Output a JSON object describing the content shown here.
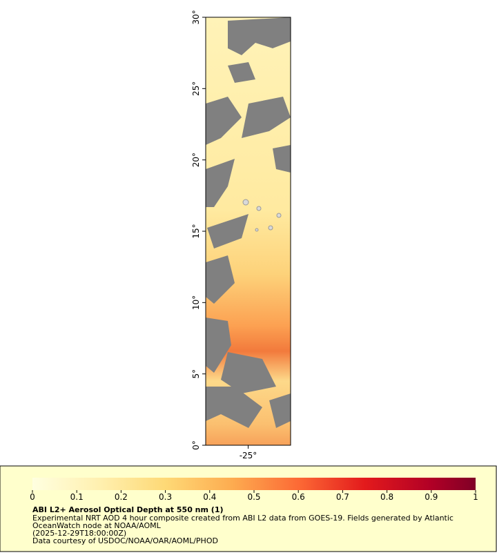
{
  "map": {
    "xlim": [
      -28,
      -22
    ],
    "ylim": [
      0,
      30
    ],
    "xticks": [
      {
        "value": -25,
        "label": "-25°"
      }
    ],
    "yticks": [
      {
        "value": 0,
        "label": "0°"
      },
      {
        "value": 5,
        "label": "5°"
      },
      {
        "value": 10,
        "label": "10°"
      },
      {
        "value": 15,
        "label": "15°"
      },
      {
        "value": 20,
        "label": "20°"
      },
      {
        "value": 25,
        "label": "25°"
      },
      {
        "value": 30,
        "label": "30°"
      }
    ]
  },
  "colorbar": {
    "lim": [
      0,
      1
    ],
    "ticks": [
      0,
      0.1,
      0.2,
      0.3,
      0.4,
      0.5,
      0.6,
      0.7,
      0.8,
      0.9,
      1
    ]
  },
  "legend": {
    "title": "ABI L2+ Aerosol Optical Depth at 550 nm (1)",
    "lines": [
      "Experimental NRT AOD 4 hour composite created from ABI L2 data from GOES-19. Fields generated by Atlantic",
      "OceanWatch node at NOAA/AOML",
      "(2025-12-29T18:00:00Z)",
      "Data courtesy of USDOC/NOAA/OAR/AOML/PHOD"
    ]
  }
}
